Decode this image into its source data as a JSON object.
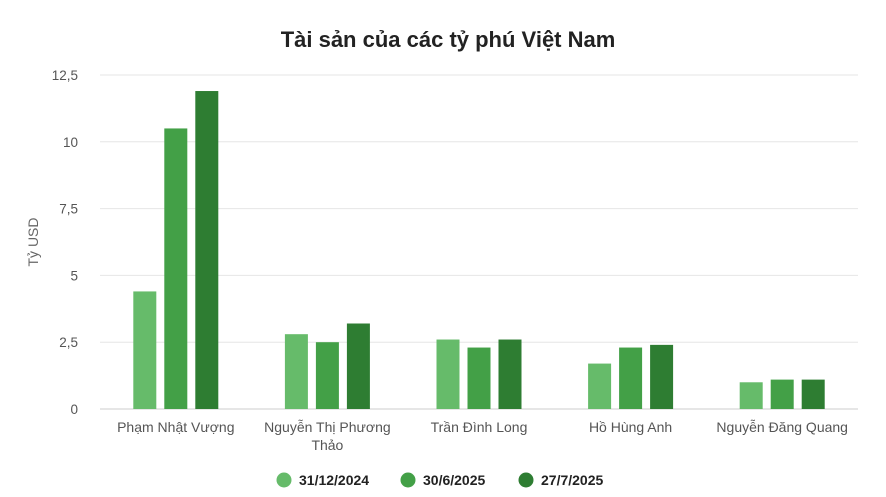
{
  "chart_data": {
    "type": "bar",
    "title": "Tài sản của các tỷ phú Việt Nam",
    "xlabel": "",
    "ylabel": "Tỷ USD",
    "ylim": [
      0,
      12.5
    ],
    "yticks": [
      0,
      2.5,
      5,
      7.5,
      10,
      12.5
    ],
    "ytick_labels": [
      "0",
      "2,5",
      "5",
      "7,5",
      "10",
      "12,5"
    ],
    "grid": true,
    "legend_position": "bottom",
    "categories": [
      [
        "Phạm Nhật Vượng"
      ],
      [
        "Nguyễn Thị Phương",
        "Thảo"
      ],
      [
        "Trần Đình Long"
      ],
      [
        "Hồ Hùng Anh"
      ],
      [
        "Nguyễn Đăng Quang"
      ]
    ],
    "series": [
      {
        "name": "31/12/2024",
        "color": "#66bb6a",
        "values": [
          4.4,
          2.8,
          2.6,
          1.7,
          1.0
        ]
      },
      {
        "name": "30/6/2025",
        "color": "#43a047",
        "values": [
          10.5,
          2.5,
          2.3,
          2.3,
          1.1
        ]
      },
      {
        "name": "27/7/2025",
        "color": "#2e7d32",
        "values": [
          11.9,
          3.2,
          2.6,
          2.4,
          1.1
        ]
      }
    ]
  }
}
